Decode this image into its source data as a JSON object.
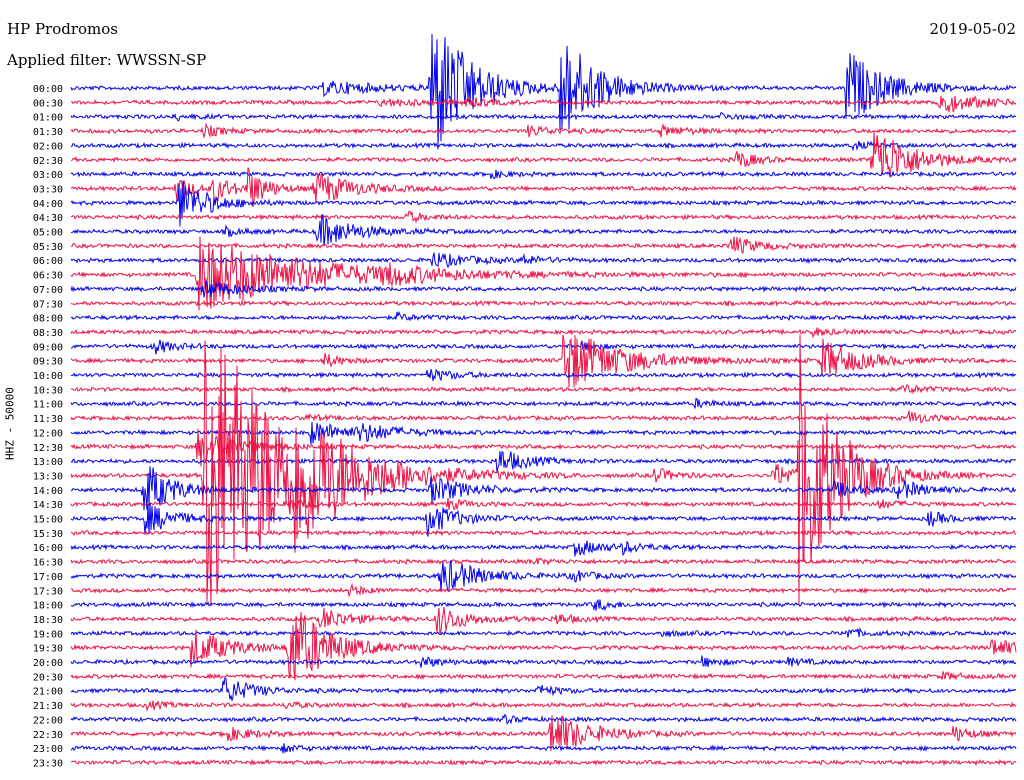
{
  "header": {
    "station": "HP Prodromos",
    "filter": "Applied filter: WWSSN-SP",
    "date": "2019-05-02"
  },
  "chart_data": {
    "type": "line",
    "ylabel": "HHZ - 50000",
    "row_labels": [
      "00:00",
      "00:30",
      "01:00",
      "01:30",
      "02:00",
      "02:30",
      "03:00",
      "03:30",
      "04:00",
      "04:30",
      "05:00",
      "05:30",
      "06:00",
      "06:30",
      "07:00",
      "07:30",
      "08:00",
      "08:30",
      "09:00",
      "09:30",
      "10:00",
      "10:30",
      "11:00",
      "11:30",
      "12:00",
      "12:30",
      "13:00",
      "13:30",
      "14:00",
      "14:30",
      "15:00",
      "15:30",
      "16:00",
      "16:30",
      "17:00",
      "17:30",
      "18:00",
      "18:30",
      "19:00",
      "19:30",
      "20:00",
      "20:30",
      "21:00",
      "21:30",
      "22:00",
      "22:30",
      "23:00",
      "23:30"
    ],
    "colors": [
      "#0000ee",
      "#ee1144"
    ],
    "row_minutes": 30,
    "events": [
      {
        "row": 0,
        "minute": 8,
        "amp": 7,
        "len": 3
      },
      {
        "row": 0,
        "minute": 11.4,
        "amp": 85,
        "len": 2
      },
      {
        "row": 0,
        "minute": 15.5,
        "amp": 58,
        "len": 2
      },
      {
        "row": 0,
        "minute": 24.6,
        "amp": 40,
        "len": 2
      },
      {
        "row": 1,
        "minute": 12.4,
        "amp": 4,
        "len": 1.5
      },
      {
        "row": 1,
        "minute": 27.5,
        "amp": 12,
        "len": 2
      },
      {
        "row": 1,
        "minute": 9.8,
        "amp": 3,
        "len": 3
      },
      {
        "row": 2,
        "minute": 3.3,
        "amp": 3,
        "len": 1
      },
      {
        "row": 2,
        "minute": 20.6,
        "amp": 3,
        "len": 1
      },
      {
        "row": 3,
        "minute": 4.2,
        "amp": 6,
        "len": 1
      },
      {
        "row": 3,
        "minute": 14.5,
        "amp": 5,
        "len": 1.5
      },
      {
        "row": 3,
        "minute": 18.7,
        "amp": 5,
        "len": 1.5
      },
      {
        "row": 4,
        "minute": 24.8,
        "amp": 4,
        "len": 1
      },
      {
        "row": 5,
        "minute": 21.1,
        "amp": 10,
        "len": 1
      },
      {
        "row": 5,
        "minute": 25.4,
        "amp": 38,
        "len": 2
      },
      {
        "row": 6,
        "minute": 13.3,
        "amp": 4,
        "len": 1
      },
      {
        "row": 7,
        "minute": 3.3,
        "amp": 12,
        "len": 1
      },
      {
        "row": 7,
        "minute": 4.5,
        "amp": 14,
        "len": 1
      },
      {
        "row": 7,
        "minute": 5.6,
        "amp": 22,
        "len": 1
      },
      {
        "row": 7,
        "minute": 7.7,
        "amp": 18,
        "len": 2
      },
      {
        "row": 8,
        "minute": 3.4,
        "amp": 28,
        "len": 1.5
      },
      {
        "row": 9,
        "minute": 10.6,
        "amp": 6,
        "len": 1
      },
      {
        "row": 10,
        "minute": 7.8,
        "amp": 18,
        "len": 2
      },
      {
        "row": 10,
        "minute": 4.9,
        "amp": 4,
        "len": 1
      },
      {
        "row": 11,
        "minute": 20.9,
        "amp": 10,
        "len": 1.5
      },
      {
        "row": 12,
        "minute": 11.4,
        "amp": 8,
        "len": 2
      },
      {
        "row": 12,
        "minute": 14.3,
        "amp": 5,
        "len": 1
      },
      {
        "row": 13,
        "minute": 9.9,
        "amp": 7,
        "len": 2
      },
      {
        "row": 13,
        "minute": 4.0,
        "amp": 40,
        "len": 6
      },
      {
        "row": 14,
        "minute": 4.2,
        "amp": 9,
        "len": 2
      },
      {
        "row": 16,
        "minute": 10.3,
        "amp": 4,
        "len": 1
      },
      {
        "row": 17,
        "minute": 23.5,
        "amp": 4,
        "len": 1
      },
      {
        "row": 18,
        "minute": 2.6,
        "amp": 8,
        "len": 1
      },
      {
        "row": 18,
        "minute": 16.2,
        "amp": 4,
        "len": 1
      },
      {
        "row": 19,
        "minute": 15.6,
        "amp": 35,
        "len": 3
      },
      {
        "row": 19,
        "minute": 8.0,
        "amp": 7,
        "len": 1
      },
      {
        "row": 19,
        "minute": 23.8,
        "amp": 22,
        "len": 2
      },
      {
        "row": 20,
        "minute": 11.3,
        "amp": 6,
        "len": 1.5
      },
      {
        "row": 21,
        "minute": 26.4,
        "amp": 5,
        "len": 1
      },
      {
        "row": 22,
        "minute": 19.8,
        "amp": 4,
        "len": 1
      },
      {
        "row": 23,
        "minute": 26.6,
        "amp": 7,
        "len": 1
      },
      {
        "row": 23,
        "minute": 7.4,
        "amp": 3,
        "len": 1
      },
      {
        "row": 24,
        "minute": 7.6,
        "amp": 12,
        "len": 2
      },
      {
        "row": 24,
        "minute": 9.1,
        "amp": 8,
        "len": 2
      },
      {
        "row": 25,
        "minute": 4.0,
        "amp": 20,
        "len": 2
      },
      {
        "row": 26,
        "minute": 13.5,
        "amp": 14,
        "len": 1.5
      },
      {
        "row": 27,
        "minute": 4.2,
        "amp": 180,
        "len": 4
      },
      {
        "row": 27,
        "minute": 7.1,
        "amp": 40,
        "len": 2.5
      },
      {
        "row": 27,
        "minute": 22.3,
        "amp": 12,
        "len": 2
      },
      {
        "row": 27,
        "minute": 23.1,
        "amp": 140,
        "len": 2
      },
      {
        "row": 27,
        "minute": 18.5,
        "amp": 8,
        "len": 1
      },
      {
        "row": 28,
        "minute": 2.3,
        "amp": 30,
        "len": 1.5
      },
      {
        "row": 28,
        "minute": 11.4,
        "amp": 14,
        "len": 2
      },
      {
        "row": 28,
        "minute": 24.2,
        "amp": 8,
        "len": 1.5
      },
      {
        "row": 28,
        "minute": 26.2,
        "amp": 10,
        "len": 1.5
      },
      {
        "row": 29,
        "minute": 6.8,
        "amp": 8,
        "len": 1
      },
      {
        "row": 29,
        "minute": 11.9,
        "amp": 6,
        "len": 1
      },
      {
        "row": 29,
        "minute": 25.6,
        "amp": 5,
        "len": 1
      },
      {
        "row": 30,
        "minute": 2.3,
        "amp": 18,
        "len": 1.5
      },
      {
        "row": 30,
        "minute": 11.3,
        "amp": 18,
        "len": 1.5
      },
      {
        "row": 30,
        "minute": 27.2,
        "amp": 8,
        "len": 1
      },
      {
        "row": 32,
        "minute": 16.0,
        "amp": 8,
        "len": 1.5
      },
      {
        "row": 32,
        "minute": 17.5,
        "amp": 5,
        "len": 1
      },
      {
        "row": 33,
        "minute": 14.6,
        "amp": 3,
        "len": 1
      },
      {
        "row": 34,
        "minute": 11.7,
        "amp": 20,
        "len": 2
      },
      {
        "row": 34,
        "minute": 15.9,
        "amp": 6,
        "len": 1
      },
      {
        "row": 35,
        "minute": 8.8,
        "amp": 5,
        "len": 1
      },
      {
        "row": 36,
        "minute": 16.6,
        "amp": 6,
        "len": 1
      },
      {
        "row": 37,
        "minute": 7.9,
        "amp": 12,
        "len": 1.5
      },
      {
        "row": 37,
        "minute": 11.6,
        "amp": 16,
        "len": 1.5
      },
      {
        "row": 37,
        "minute": 15.3,
        "amp": 6,
        "len": 1
      },
      {
        "row": 38,
        "minute": 24.6,
        "amp": 5,
        "len": 1
      },
      {
        "row": 38,
        "minute": 18.7,
        "amp": 3,
        "len": 1
      },
      {
        "row": 39,
        "minute": 3.8,
        "amp": 20,
        "len": 2
      },
      {
        "row": 39,
        "minute": 6.9,
        "amp": 50,
        "len": 2
      },
      {
        "row": 39,
        "minute": 29.2,
        "amp": 10,
        "len": 1.5
      },
      {
        "row": 40,
        "minute": 11.1,
        "amp": 6,
        "len": 1
      },
      {
        "row": 40,
        "minute": 20.0,
        "amp": 5,
        "len": 1
      },
      {
        "row": 40,
        "minute": 22.7,
        "amp": 4,
        "len": 1
      },
      {
        "row": 41,
        "minute": 27.6,
        "amp": 4,
        "len": 1
      },
      {
        "row": 42,
        "minute": 4.8,
        "amp": 15,
        "len": 1.5
      },
      {
        "row": 42,
        "minute": 14.8,
        "amp": 6,
        "len": 1
      },
      {
        "row": 43,
        "minute": 2.4,
        "amp": 4,
        "len": 1
      },
      {
        "row": 43,
        "minute": 6.8,
        "amp": 3,
        "len": 1
      },
      {
        "row": 44,
        "minute": 13.7,
        "amp": 4,
        "len": 0.8
      },
      {
        "row": 45,
        "minute": 4.8,
        "amp": 8,
        "len": 1.5
      },
      {
        "row": 45,
        "minute": 15.2,
        "amp": 25,
        "len": 2
      },
      {
        "row": 45,
        "minute": 28.0,
        "amp": 8,
        "len": 1
      },
      {
        "row": 46,
        "minute": 6.7,
        "amp": 4,
        "len": 1
      }
    ]
  }
}
